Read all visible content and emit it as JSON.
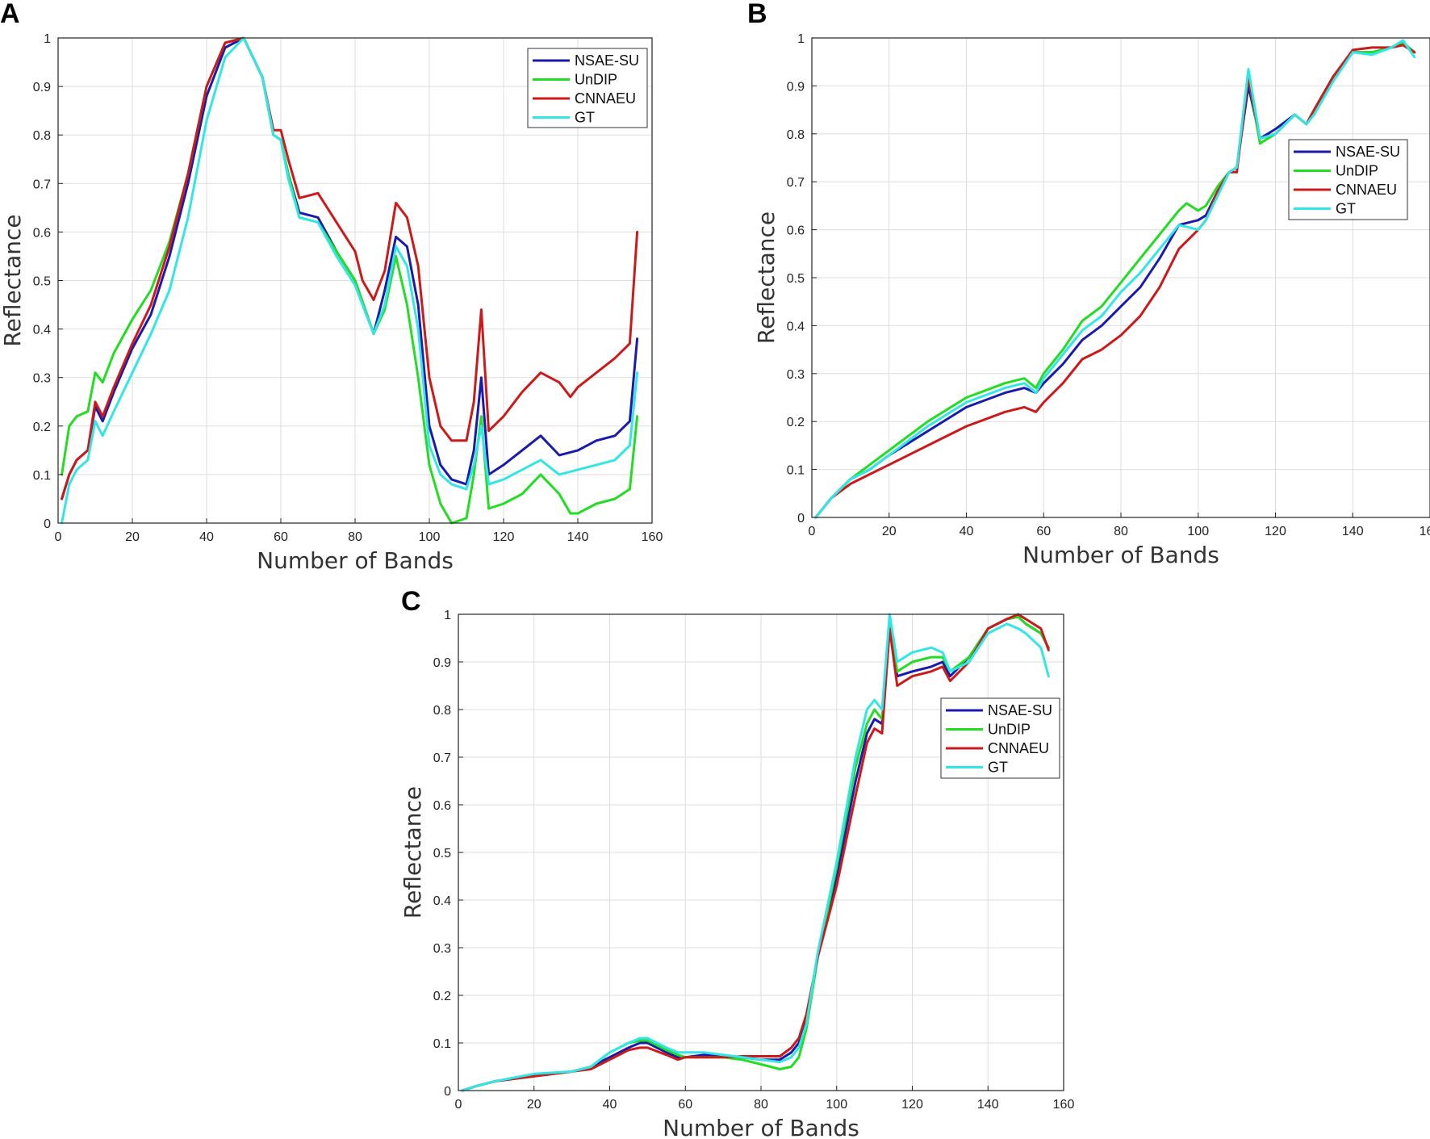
{
  "figure": {
    "colors": {
      "NSAE-SU": "#1a1aad",
      "UnDIP": "#22dd22",
      "CNNAEU": "#cc1a1a",
      "GT": "#33e6e6"
    },
    "legend_labels": [
      "NSAE-SU",
      "UnDIP",
      "CNNAEU",
      "GT"
    ]
  },
  "chart_data": [
    {
      "id": "A",
      "panel_label": "A",
      "type": "line",
      "xlabel": "Number of Bands",
      "ylabel": "Reflectance",
      "xlim": [
        0,
        160
      ],
      "ylim": [
        0,
        1
      ],
      "xticks": [
        "0",
        "20",
        "40",
        "60",
        "80",
        "100",
        "120",
        "140",
        "160"
      ],
      "yticks": [
        "0",
        "0.1",
        "0.2",
        "0.3",
        "0.4",
        "0.5",
        "0.6",
        "0.7",
        "0.8",
        "0.9",
        "1"
      ],
      "grid": true,
      "legend_position": "top-right",
      "series": [
        {
          "name": "NSAE-SU",
          "x": [
            1,
            3,
            5,
            8,
            10,
            12,
            15,
            20,
            25,
            30,
            35,
            40,
            45,
            50,
            55,
            58,
            60,
            62,
            65,
            70,
            75,
            80,
            85,
            88,
            91,
            94,
            97,
            100,
            103,
            106,
            110,
            112,
            114,
            116,
            120,
            125,
            130,
            135,
            140,
            145,
            150,
            154,
            156
          ],
          "y": [
            0.05,
            0.1,
            0.13,
            0.15,
            0.24,
            0.21,
            0.27,
            0.36,
            0.43,
            0.55,
            0.7,
            0.88,
            0.98,
            1.0,
            0.92,
            0.8,
            0.79,
            0.72,
            0.64,
            0.63,
            0.56,
            0.5,
            0.39,
            0.48,
            0.59,
            0.57,
            0.45,
            0.2,
            0.12,
            0.09,
            0.08,
            0.15,
            0.3,
            0.1,
            0.12,
            0.15,
            0.18,
            0.14,
            0.15,
            0.17,
            0.18,
            0.21,
            0.38
          ]
        },
        {
          "name": "UnDIP",
          "x": [
            1,
            3,
            5,
            8,
            10,
            12,
            15,
            20,
            25,
            30,
            35,
            40,
            45,
            50,
            55,
            58,
            60,
            62,
            65,
            70,
            75,
            80,
            85,
            88,
            91,
            94,
            97,
            100,
            103,
            106,
            110,
            112,
            114,
            116,
            120,
            125,
            130,
            135,
            138,
            140,
            145,
            150,
            154,
            156
          ],
          "y": [
            0.1,
            0.2,
            0.22,
            0.23,
            0.31,
            0.29,
            0.35,
            0.42,
            0.48,
            0.58,
            0.72,
            0.9,
            0.99,
            1.0,
            0.92,
            0.8,
            0.79,
            0.72,
            0.63,
            0.62,
            0.56,
            0.5,
            0.39,
            0.44,
            0.55,
            0.45,
            0.3,
            0.12,
            0.04,
            0.0,
            0.01,
            0.1,
            0.22,
            0.03,
            0.04,
            0.06,
            0.1,
            0.06,
            0.02,
            0.02,
            0.04,
            0.05,
            0.07,
            0.22
          ]
        },
        {
          "name": "CNNAEU",
          "x": [
            1,
            3,
            5,
            8,
            10,
            12,
            15,
            20,
            25,
            30,
            35,
            40,
            45,
            50,
            55,
            58,
            60,
            62,
            65,
            70,
            75,
            80,
            82,
            85,
            88,
            91,
            94,
            97,
            100,
            103,
            106,
            110,
            112,
            114,
            116,
            120,
            125,
            130,
            135,
            138,
            140,
            145,
            150,
            154,
            156
          ],
          "y": [
            0.05,
            0.1,
            0.13,
            0.15,
            0.25,
            0.22,
            0.28,
            0.37,
            0.45,
            0.57,
            0.72,
            0.9,
            0.99,
            1.0,
            0.92,
            0.81,
            0.81,
            0.75,
            0.67,
            0.68,
            0.62,
            0.56,
            0.5,
            0.46,
            0.52,
            0.66,
            0.63,
            0.53,
            0.3,
            0.2,
            0.17,
            0.17,
            0.25,
            0.44,
            0.19,
            0.22,
            0.27,
            0.31,
            0.29,
            0.26,
            0.28,
            0.31,
            0.34,
            0.37,
            0.6
          ]
        },
        {
          "name": "GT",
          "x": [
            1,
            3,
            5,
            8,
            10,
            12,
            15,
            20,
            25,
            30,
            35,
            40,
            45,
            50,
            55,
            58,
            60,
            62,
            65,
            70,
            75,
            80,
            85,
            88,
            91,
            94,
            97,
            100,
            103,
            106,
            110,
            112,
            114,
            116,
            120,
            125,
            130,
            135,
            140,
            145,
            150,
            154,
            156
          ],
          "y": [
            0.0,
            0.08,
            0.11,
            0.13,
            0.21,
            0.18,
            0.23,
            0.31,
            0.39,
            0.48,
            0.63,
            0.83,
            0.96,
            1.0,
            0.92,
            0.8,
            0.79,
            0.71,
            0.63,
            0.62,
            0.55,
            0.49,
            0.39,
            0.45,
            0.57,
            0.53,
            0.4,
            0.16,
            0.1,
            0.08,
            0.07,
            0.12,
            0.2,
            0.08,
            0.09,
            0.11,
            0.13,
            0.1,
            0.11,
            0.12,
            0.13,
            0.16,
            0.31
          ]
        }
      ]
    },
    {
      "id": "B",
      "panel_label": "B",
      "type": "line",
      "xlabel": "Number of Bands",
      "ylabel": "Reflectance",
      "xlim": [
        0,
        160
      ],
      "ylim": [
        0,
        1
      ],
      "xticks": [
        "0",
        "20",
        "40",
        "60",
        "80",
        "100",
        "120",
        "140",
        "160"
      ],
      "yticks": [
        "0",
        "0.1",
        "0.2",
        "0.3",
        "0.4",
        "0.5",
        "0.6",
        "0.7",
        "0.8",
        "0.9",
        "1"
      ],
      "grid": true,
      "legend_position": "right",
      "series": [
        {
          "name": "NSAE-SU",
          "x": [
            1,
            5,
            10,
            15,
            20,
            30,
            40,
            50,
            55,
            58,
            60,
            65,
            70,
            75,
            80,
            85,
            90,
            95,
            100,
            102,
            105,
            108,
            110,
            113,
            116,
            120,
            125,
            128,
            130,
            135,
            140,
            145,
            150,
            153,
            156
          ],
          "y": [
            0.0,
            0.04,
            0.08,
            0.1,
            0.13,
            0.18,
            0.23,
            0.26,
            0.27,
            0.26,
            0.28,
            0.32,
            0.37,
            0.4,
            0.44,
            0.48,
            0.54,
            0.61,
            0.62,
            0.63,
            0.68,
            0.72,
            0.73,
            0.9,
            0.79,
            0.81,
            0.84,
            0.82,
            0.85,
            0.92,
            0.97,
            0.97,
            0.98,
            0.99,
            0.97
          ]
        },
        {
          "name": "UnDIP",
          "x": [
            1,
            5,
            10,
            15,
            20,
            30,
            40,
            50,
            55,
            58,
            60,
            65,
            70,
            75,
            80,
            85,
            90,
            95,
            97,
            100,
            102,
            105,
            108,
            110,
            113,
            116,
            120,
            125,
            128,
            130,
            135,
            140,
            145,
            150,
            153,
            156
          ],
          "y": [
            0.0,
            0.04,
            0.08,
            0.11,
            0.14,
            0.2,
            0.25,
            0.28,
            0.29,
            0.27,
            0.3,
            0.35,
            0.41,
            0.44,
            0.49,
            0.54,
            0.59,
            0.64,
            0.655,
            0.64,
            0.65,
            0.69,
            0.72,
            0.73,
            0.92,
            0.78,
            0.8,
            0.84,
            0.82,
            0.85,
            0.92,
            0.97,
            0.97,
            0.98,
            0.99,
            0.97
          ]
        },
        {
          "name": "CNNAEU",
          "x": [
            1,
            5,
            10,
            15,
            20,
            30,
            40,
            50,
            55,
            58,
            60,
            65,
            70,
            75,
            80,
            85,
            90,
            95,
            100,
            102,
            105,
            108,
            110,
            113,
            116,
            120,
            125,
            128,
            130,
            135,
            140,
            145,
            150,
            153,
            156
          ],
          "y": [
            0.0,
            0.04,
            0.07,
            0.09,
            0.11,
            0.15,
            0.19,
            0.22,
            0.23,
            0.22,
            0.24,
            0.28,
            0.33,
            0.35,
            0.38,
            0.42,
            0.48,
            0.56,
            0.6,
            0.62,
            0.68,
            0.72,
            0.72,
            0.92,
            0.79,
            0.8,
            0.84,
            0.82,
            0.85,
            0.92,
            0.975,
            0.98,
            0.98,
            0.985,
            0.97
          ]
        },
        {
          "name": "GT",
          "x": [
            1,
            5,
            10,
            15,
            20,
            30,
            40,
            50,
            55,
            58,
            60,
            65,
            70,
            75,
            80,
            85,
            90,
            95,
            100,
            102,
            105,
            108,
            110,
            113,
            116,
            120,
            125,
            128,
            130,
            135,
            140,
            145,
            150,
            153,
            156
          ],
          "y": [
            0.0,
            0.04,
            0.08,
            0.1,
            0.13,
            0.19,
            0.24,
            0.27,
            0.28,
            0.26,
            0.29,
            0.34,
            0.39,
            0.42,
            0.47,
            0.51,
            0.56,
            0.61,
            0.6,
            0.62,
            0.67,
            0.72,
            0.73,
            0.935,
            0.79,
            0.8,
            0.84,
            0.82,
            0.84,
            0.91,
            0.97,
            0.965,
            0.98,
            0.995,
            0.96
          ]
        }
      ]
    },
    {
      "id": "C",
      "panel_label": "C",
      "type": "line",
      "xlabel": "Number of Bands",
      "ylabel": "Reflectance",
      "xlim": [
        0,
        160
      ],
      "ylim": [
        0,
        1
      ],
      "xticks": [
        "0",
        "20",
        "40",
        "60",
        "80",
        "100",
        "120",
        "140",
        "160"
      ],
      "yticks": [
        "0",
        "0.1",
        "0.2",
        "0.3",
        "0.4",
        "0.5",
        "0.6",
        "0.7",
        "0.8",
        "0.9",
        "1"
      ],
      "grid": true,
      "legend_position": "upper-right",
      "series": [
        {
          "name": "NSAE-SU",
          "x": [
            1,
            5,
            10,
            20,
            30,
            35,
            40,
            45,
            48,
            50,
            55,
            58,
            60,
            65,
            70,
            75,
            80,
            85,
            88,
            90,
            92,
            95,
            100,
            105,
            108,
            110,
            112,
            114,
            116,
            120,
            125,
            128,
            130,
            135,
            140,
            145,
            148,
            150,
            154,
            156
          ],
          "y": [
            0.0,
            0.01,
            0.02,
            0.03,
            0.04,
            0.05,
            0.07,
            0.09,
            0.1,
            0.1,
            0.08,
            0.07,
            0.07,
            0.075,
            0.07,
            0.07,
            0.065,
            0.065,
            0.08,
            0.1,
            0.15,
            0.28,
            0.45,
            0.65,
            0.75,
            0.78,
            0.77,
            0.97,
            0.87,
            0.88,
            0.89,
            0.9,
            0.87,
            0.91,
            0.97,
            0.99,
            0.995,
            0.98,
            0.96,
            0.93
          ]
        },
        {
          "name": "UnDIP",
          "x": [
            1,
            5,
            10,
            20,
            30,
            35,
            40,
            45,
            48,
            50,
            55,
            58,
            60,
            65,
            70,
            75,
            80,
            85,
            88,
            90,
            92,
            95,
            100,
            105,
            108,
            110,
            112,
            114,
            116,
            120,
            125,
            128,
            130,
            135,
            140,
            145,
            148,
            150,
            154,
            156
          ],
          "y": [
            0.0,
            0.01,
            0.02,
            0.03,
            0.04,
            0.05,
            0.08,
            0.1,
            0.105,
            0.105,
            0.085,
            0.075,
            0.07,
            0.07,
            0.07,
            0.065,
            0.055,
            0.045,
            0.05,
            0.07,
            0.13,
            0.28,
            0.47,
            0.68,
            0.77,
            0.8,
            0.78,
            0.98,
            0.88,
            0.9,
            0.91,
            0.91,
            0.88,
            0.91,
            0.97,
            0.99,
            0.995,
            0.98,
            0.96,
            0.93
          ]
        },
        {
          "name": "CNNAEU",
          "x": [
            1,
            5,
            10,
            20,
            30,
            35,
            40,
            45,
            48,
            50,
            55,
            58,
            60,
            65,
            70,
            75,
            80,
            85,
            88,
            90,
            92,
            95,
            100,
            105,
            108,
            110,
            112,
            114,
            116,
            120,
            125,
            128,
            130,
            135,
            140,
            145,
            148,
            150,
            154,
            156
          ],
          "y": [
            0.0,
            0.01,
            0.02,
            0.03,
            0.04,
            0.045,
            0.065,
            0.085,
            0.09,
            0.09,
            0.075,
            0.065,
            0.07,
            0.07,
            0.07,
            0.072,
            0.072,
            0.072,
            0.09,
            0.11,
            0.16,
            0.28,
            0.43,
            0.62,
            0.73,
            0.76,
            0.75,
            0.97,
            0.85,
            0.87,
            0.88,
            0.89,
            0.86,
            0.9,
            0.97,
            0.99,
            1.0,
            0.99,
            0.97,
            0.925
          ]
        },
        {
          "name": "GT",
          "x": [
            1,
            5,
            10,
            20,
            30,
            35,
            40,
            45,
            48,
            50,
            55,
            58,
            60,
            65,
            70,
            75,
            80,
            85,
            88,
            90,
            92,
            95,
            100,
            105,
            108,
            110,
            112,
            114,
            116,
            120,
            125,
            128,
            130,
            135,
            140,
            145,
            148,
            150,
            154,
            156
          ],
          "y": [
            0.0,
            0.01,
            0.02,
            0.035,
            0.04,
            0.05,
            0.08,
            0.1,
            0.11,
            0.11,
            0.09,
            0.08,
            0.08,
            0.08,
            0.075,
            0.07,
            0.065,
            0.06,
            0.07,
            0.09,
            0.14,
            0.29,
            0.48,
            0.7,
            0.8,
            0.82,
            0.8,
            1.0,
            0.9,
            0.92,
            0.93,
            0.92,
            0.88,
            0.9,
            0.96,
            0.98,
            0.97,
            0.96,
            0.93,
            0.87
          ]
        }
      ]
    }
  ]
}
